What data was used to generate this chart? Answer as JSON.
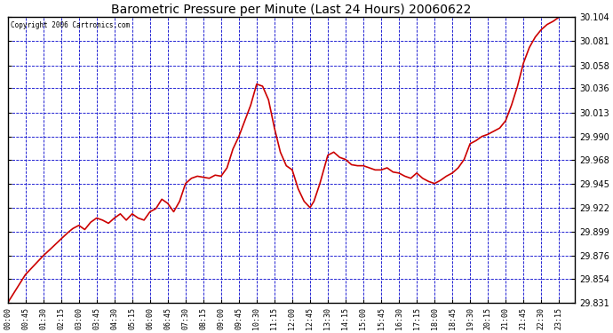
{
  "title": "Barometric Pressure per Minute (Last 24 Hours) 20060622",
  "copyright": "Copyright 2006 Cartronics.com",
  "bg_color": "#ffffff",
  "plot_bg_color": "#ffffff",
  "line_color": "#cc0000",
  "grid_color": "#0000cc",
  "outer_bg": "#ffffff",
  "ylim": [
    29.831,
    30.104
  ],
  "yticks": [
    29.831,
    29.854,
    29.876,
    29.899,
    29.922,
    29.945,
    29.968,
    29.99,
    30.013,
    30.036,
    30.058,
    30.081,
    30.104
  ],
  "xtick_labels": [
    "00:00",
    "00:45",
    "01:30",
    "02:15",
    "03:00",
    "03:45",
    "04:30",
    "05:15",
    "06:00",
    "06:45",
    "07:30",
    "08:15",
    "09:00",
    "09:45",
    "10:30",
    "11:15",
    "12:00",
    "12:45",
    "13:30",
    "14:15",
    "15:00",
    "15:45",
    "16:30",
    "17:15",
    "18:00",
    "18:45",
    "19:30",
    "20:15",
    "21:00",
    "21:45",
    "22:30",
    "23:15"
  ],
  "key_times": [
    0,
    20,
    45,
    70,
    90,
    110,
    135,
    155,
    165,
    180,
    195,
    210,
    225,
    240,
    255,
    270,
    285,
    300,
    315,
    330,
    345,
    360,
    375,
    390,
    405,
    420,
    435,
    450,
    465,
    480,
    495,
    510,
    525,
    540,
    555,
    570,
    585,
    600,
    615,
    630,
    645,
    660,
    675,
    690,
    705,
    720,
    735,
    750,
    765,
    775,
    790,
    810,
    825,
    840,
    855,
    870,
    885,
    900,
    915,
    930,
    945,
    960,
    975,
    990,
    1005,
    1020,
    1035,
    1050,
    1065,
    1080,
    1095,
    1110,
    1125,
    1140,
    1155,
    1170,
    1185,
    1200,
    1215,
    1230,
    1245,
    1260,
    1275,
    1290,
    1305,
    1320,
    1335,
    1350,
    1365,
    1380,
    1395,
    1410
  ],
  "key_pressures": [
    29.831,
    29.843,
    29.858,
    29.868,
    29.876,
    29.883,
    29.892,
    29.899,
    29.902,
    29.905,
    29.901,
    29.908,
    29.912,
    29.91,
    29.907,
    29.912,
    29.916,
    29.91,
    29.916,
    29.912,
    29.91,
    29.918,
    29.921,
    29.93,
    29.926,
    29.918,
    29.928,
    29.945,
    29.95,
    29.952,
    29.951,
    29.95,
    29.953,
    29.952,
    29.96,
    29.978,
    29.99,
    30.005,
    30.02,
    30.04,
    30.038,
    30.025,
    29.998,
    29.975,
    29.962,
    29.958,
    29.94,
    29.928,
    29.922,
    29.928,
    29.945,
    29.972,
    29.975,
    29.97,
    29.968,
    29.963,
    29.962,
    29.962,
    29.96,
    29.958,
    29.958,
    29.96,
    29.956,
    29.955,
    29.952,
    29.95,
    29.955,
    29.95,
    29.947,
    29.945,
    29.948,
    29.952,
    29.955,
    29.96,
    29.968,
    29.983,
    29.986,
    29.99,
    29.992,
    29.995,
    29.998,
    30.005,
    30.02,
    30.038,
    30.06,
    30.075,
    30.085,
    30.092,
    30.097,
    30.1,
    30.104,
    30.106
  ]
}
